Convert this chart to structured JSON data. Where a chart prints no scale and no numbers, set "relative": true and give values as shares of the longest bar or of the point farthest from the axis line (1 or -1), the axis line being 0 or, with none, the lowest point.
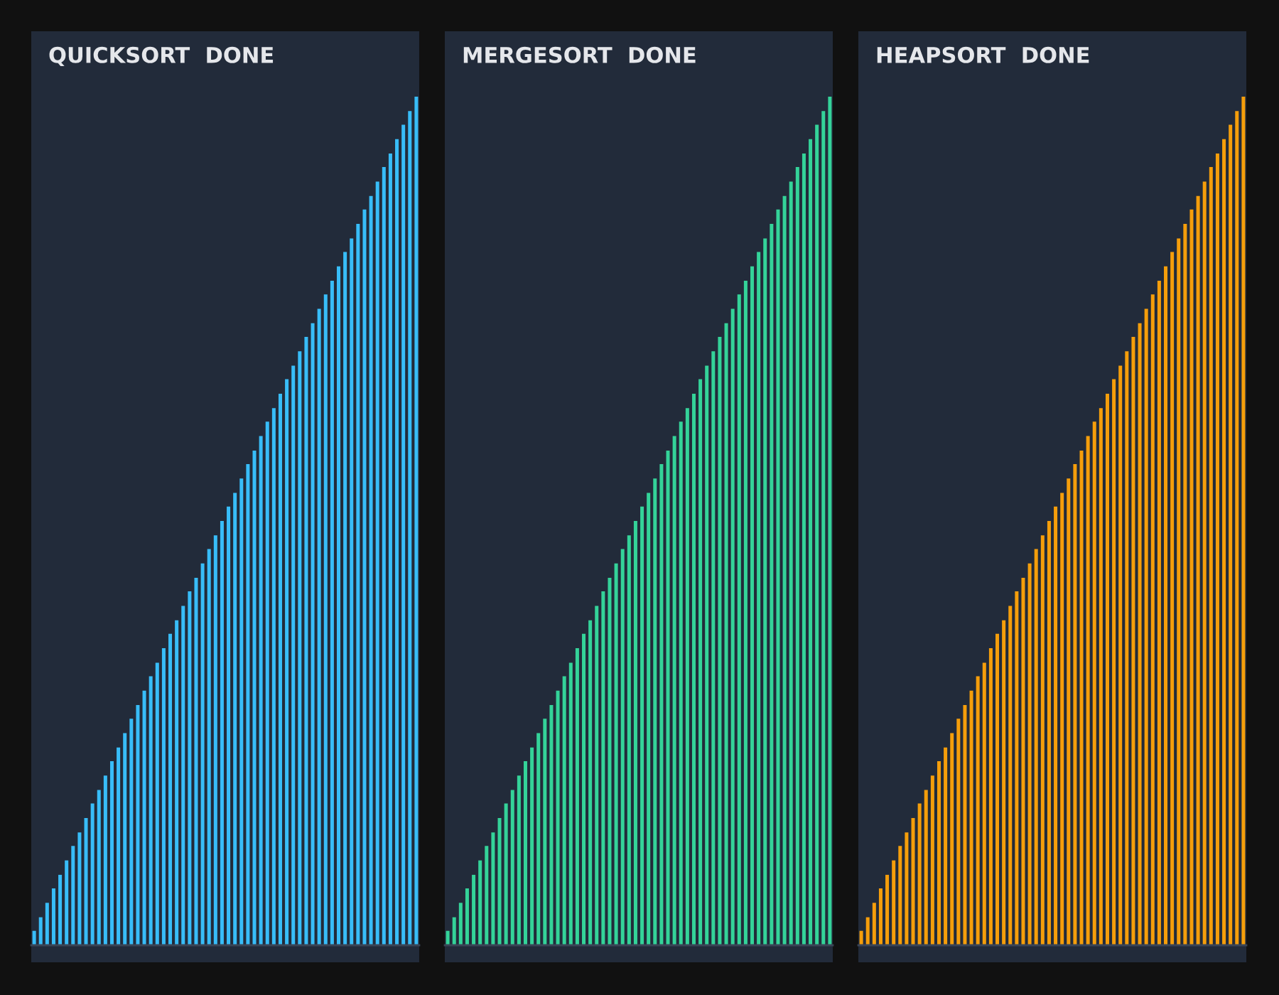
{
  "chart_data": [
    {
      "type": "bar",
      "title": "QUICKSORT  DONE",
      "relative": true,
      "categories": [
        null,
        null,
        null,
        null,
        null,
        null,
        null,
        null,
        null,
        null,
        null,
        null,
        null,
        null,
        null,
        null,
        null,
        null,
        null,
        null,
        null,
        null,
        null,
        null,
        null,
        null,
        null,
        null,
        null,
        null,
        null,
        null,
        null,
        null,
        null,
        null,
        null,
        null,
        null,
        null,
        null,
        null,
        null,
        null,
        null,
        null,
        null,
        null,
        null,
        null,
        null,
        null,
        null,
        null,
        null,
        null,
        null,
        null,
        null,
        null
      ],
      "color": "#38bdf8",
      "values": [
        0.017,
        0.033,
        0.05,
        0.067,
        0.083,
        0.1,
        0.117,
        0.133,
        0.15,
        0.167,
        0.183,
        0.2,
        0.217,
        0.233,
        0.25,
        0.267,
        0.283,
        0.3,
        0.317,
        0.333,
        0.35,
        0.367,
        0.383,
        0.4,
        0.417,
        0.433,
        0.45,
        0.467,
        0.483,
        0.5,
        0.517,
        0.533,
        0.55,
        0.567,
        0.583,
        0.6,
        0.617,
        0.633,
        0.65,
        0.667,
        0.683,
        0.7,
        0.717,
        0.733,
        0.75,
        0.767,
        0.783,
        0.8,
        0.817,
        0.833,
        0.85,
        0.867,
        0.883,
        0.9,
        0.917,
        0.933,
        0.95,
        0.967,
        0.983,
        1
      ]
    },
    {
      "type": "bar",
      "title": "MERGESORT  DONE",
      "relative": true,
      "categories": [
        null,
        null,
        null,
        null,
        null,
        null,
        null,
        null,
        null,
        null,
        null,
        null,
        null,
        null,
        null,
        null,
        null,
        null,
        null,
        null,
        null,
        null,
        null,
        null,
        null,
        null,
        null,
        null,
        null,
        null,
        null,
        null,
        null,
        null,
        null,
        null,
        null,
        null,
        null,
        null,
        null,
        null,
        null,
        null,
        null,
        null,
        null,
        null,
        null,
        null,
        null,
        null,
        null,
        null,
        null,
        null,
        null,
        null,
        null,
        null
      ],
      "color": "#34d399",
      "values": [
        0.017,
        0.033,
        0.05,
        0.067,
        0.083,
        0.1,
        0.117,
        0.133,
        0.15,
        0.167,
        0.183,
        0.2,
        0.217,
        0.233,
        0.25,
        0.267,
        0.283,
        0.3,
        0.317,
        0.333,
        0.35,
        0.367,
        0.383,
        0.4,
        0.417,
        0.433,
        0.45,
        0.467,
        0.483,
        0.5,
        0.517,
        0.533,
        0.55,
        0.567,
        0.583,
        0.6,
        0.617,
        0.633,
        0.65,
        0.667,
        0.683,
        0.7,
        0.717,
        0.733,
        0.75,
        0.767,
        0.783,
        0.8,
        0.817,
        0.833,
        0.85,
        0.867,
        0.883,
        0.9,
        0.917,
        0.933,
        0.95,
        0.967,
        0.983,
        1
      ]
    },
    {
      "type": "bar",
      "title": "HEAPSORT  DONE",
      "relative": true,
      "categories": [
        null,
        null,
        null,
        null,
        null,
        null,
        null,
        null,
        null,
        null,
        null,
        null,
        null,
        null,
        null,
        null,
        null,
        null,
        null,
        null,
        null,
        null,
        null,
        null,
        null,
        null,
        null,
        null,
        null,
        null,
        null,
        null,
        null,
        null,
        null,
        null,
        null,
        null,
        null,
        null,
        null,
        null,
        null,
        null,
        null,
        null,
        null,
        null,
        null,
        null,
        null,
        null,
        null,
        null,
        null,
        null,
        null,
        null,
        null,
        null
      ],
      "color": "#f59e0b",
      "values": [
        0.017,
        0.033,
        0.05,
        0.067,
        0.083,
        0.1,
        0.117,
        0.133,
        0.15,
        0.167,
        0.183,
        0.2,
        0.217,
        0.233,
        0.25,
        0.267,
        0.283,
        0.3,
        0.317,
        0.333,
        0.35,
        0.367,
        0.383,
        0.4,
        0.417,
        0.433,
        0.45,
        0.467,
        0.483,
        0.5,
        0.517,
        0.533,
        0.55,
        0.567,
        0.583,
        0.6,
        0.617,
        0.633,
        0.65,
        0.667,
        0.683,
        0.7,
        0.717,
        0.733,
        0.75,
        0.767,
        0.783,
        0.8,
        0.817,
        0.833,
        0.85,
        0.867,
        0.883,
        0.9,
        0.917,
        0.933,
        0.95,
        0.967,
        0.983,
        1
      ]
    }
  ]
}
